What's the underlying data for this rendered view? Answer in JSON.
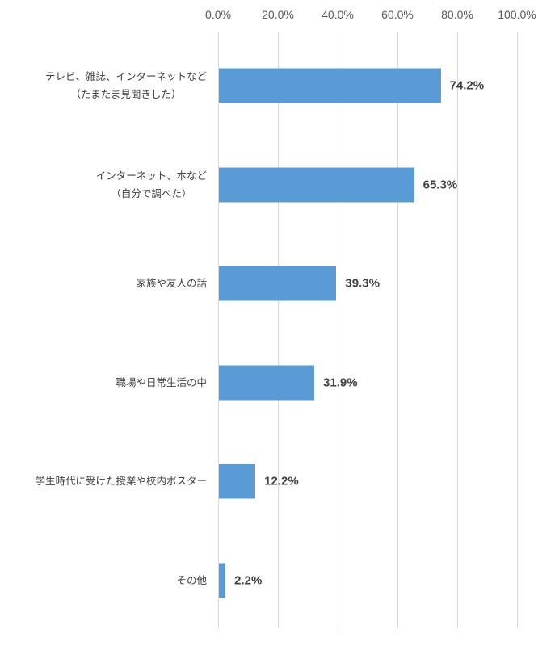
{
  "chart_data": {
    "type": "bar",
    "orientation": "horizontal",
    "title": "",
    "xlabel": "",
    "ylabel": "",
    "xlim": [
      0,
      100
    ],
    "x_tick_labels": [
      "0.0%",
      "20.0%",
      "40.0%",
      "60.0%",
      "80.0%",
      "100.0%"
    ],
    "x_axis_position": "top",
    "grid": true,
    "legend": null,
    "bar_color": "#5b9bd5",
    "categories": [
      [
        "テレビ、雑誌、インターネットなど",
        "（たまたま見聞きした）"
      ],
      [
        "インターネット、本など",
        "（自分で調べた）"
      ],
      [
        "家族や友人の話"
      ],
      [
        "職場や日常生活の中"
      ],
      [
        "学生時代に受けた授業や校内ポスター"
      ],
      [
        "その他"
      ]
    ],
    "values": [
      74.2,
      65.3,
      39.3,
      31.9,
      12.2,
      2.2
    ],
    "value_labels": [
      "74.2%",
      "65.3%",
      "39.3%",
      "31.9%",
      "12.2%",
      "2.2%"
    ]
  }
}
